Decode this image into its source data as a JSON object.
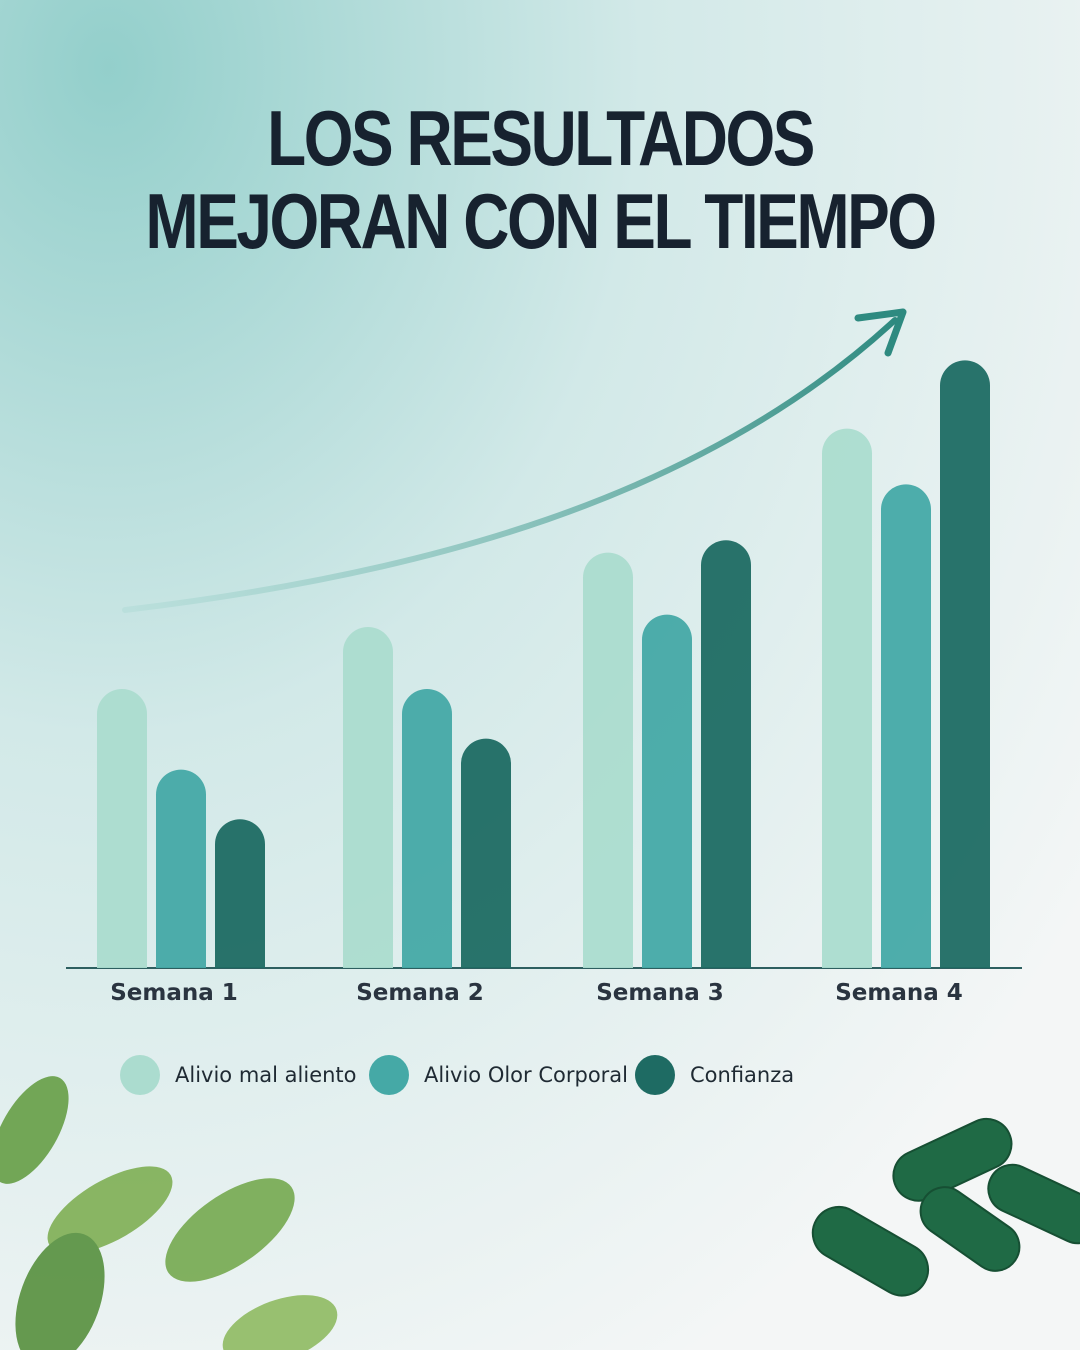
{
  "chart_data": {
    "type": "bar",
    "title": [
      "LOS RESULTADOS",
      "MEJORAN CON EL TIEMPO"
    ],
    "categories": [
      "Semana 1",
      "Semana 2",
      "Semana 3",
      "Semana 4"
    ],
    "series": [
      {
        "name": "Alivio mal aliento",
        "color": "#abdccf",
        "values": [
          45,
          55,
          67,
          87
        ]
      },
      {
        "name": "Alivio Olor Corporal",
        "color": "#45a9a6",
        "values": [
          32,
          45,
          57,
          78
        ]
      },
      {
        "name": "Confianza",
        "color": "#1e6b63",
        "values": [
          24,
          37,
          69,
          98
        ]
      }
    ],
    "legend": "bottom"
  }
}
